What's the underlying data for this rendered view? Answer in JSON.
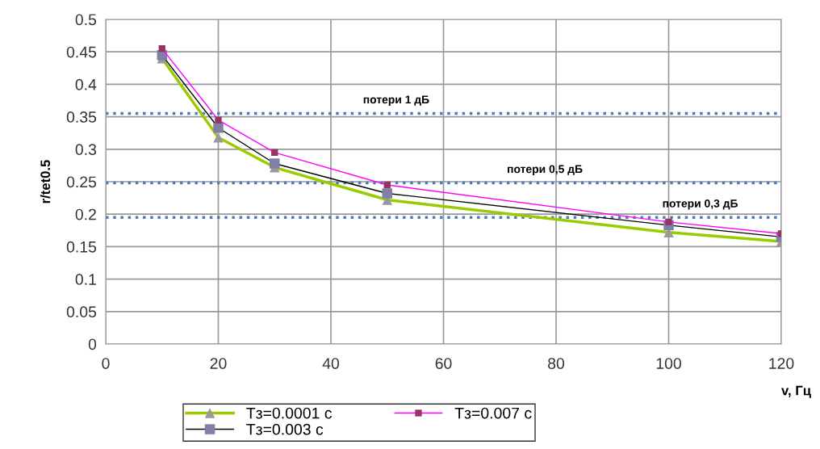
{
  "chart_data": {
    "type": "line",
    "xlabel": "v, Гц",
    "ylabel": "r/tet0.5",
    "x": [
      10,
      20,
      30,
      50,
      100,
      120
    ],
    "series": [
      {
        "name": "Тз=0.0001 с",
        "color": "#99cc00",
        "marker": "triangle",
        "values": [
          0.44,
          0.318,
          0.272,
          0.222,
          0.172,
          0.158
        ]
      },
      {
        "name": "Тз=0.003 с",
        "color": "#000000",
        "marker": "square",
        "values": [
          0.445,
          0.333,
          0.278,
          0.232,
          0.183,
          0.165
        ]
      },
      {
        "name": "Тз=0.007 с",
        "color": "#ff00ff",
        "marker": "square",
        "values": [
          0.455,
          0.345,
          0.295,
          0.245,
          0.188,
          0.17
        ]
      }
    ],
    "ref_lines": [
      {
        "axis": "y",
        "value": 0.355,
        "label": "потери 1 дБ",
        "color": "#4a7ebb",
        "line_style": "dotted"
      },
      {
        "axis": "y",
        "value": 0.248,
        "label": "потери 0,5 дБ",
        "color": "#4a7ebb",
        "line_style": "dotted"
      },
      {
        "axis": "y",
        "value": 0.195,
        "label": "потери 0,3 дБ",
        "color": "#4a7ebb",
        "line_style": "dotted"
      }
    ],
    "xlim": [
      0,
      120
    ],
    "xticks": [
      0,
      20,
      40,
      60,
      80,
      100,
      120
    ],
    "ylim": [
      0,
      0.5
    ],
    "yticks": [
      0,
      0.05,
      0.1,
      0.15,
      0.2,
      0.25,
      0.3,
      0.35,
      0.4,
      0.45,
      0.5
    ],
    "grid": true,
    "legend": "bottom",
    "line_style": "solid"
  }
}
